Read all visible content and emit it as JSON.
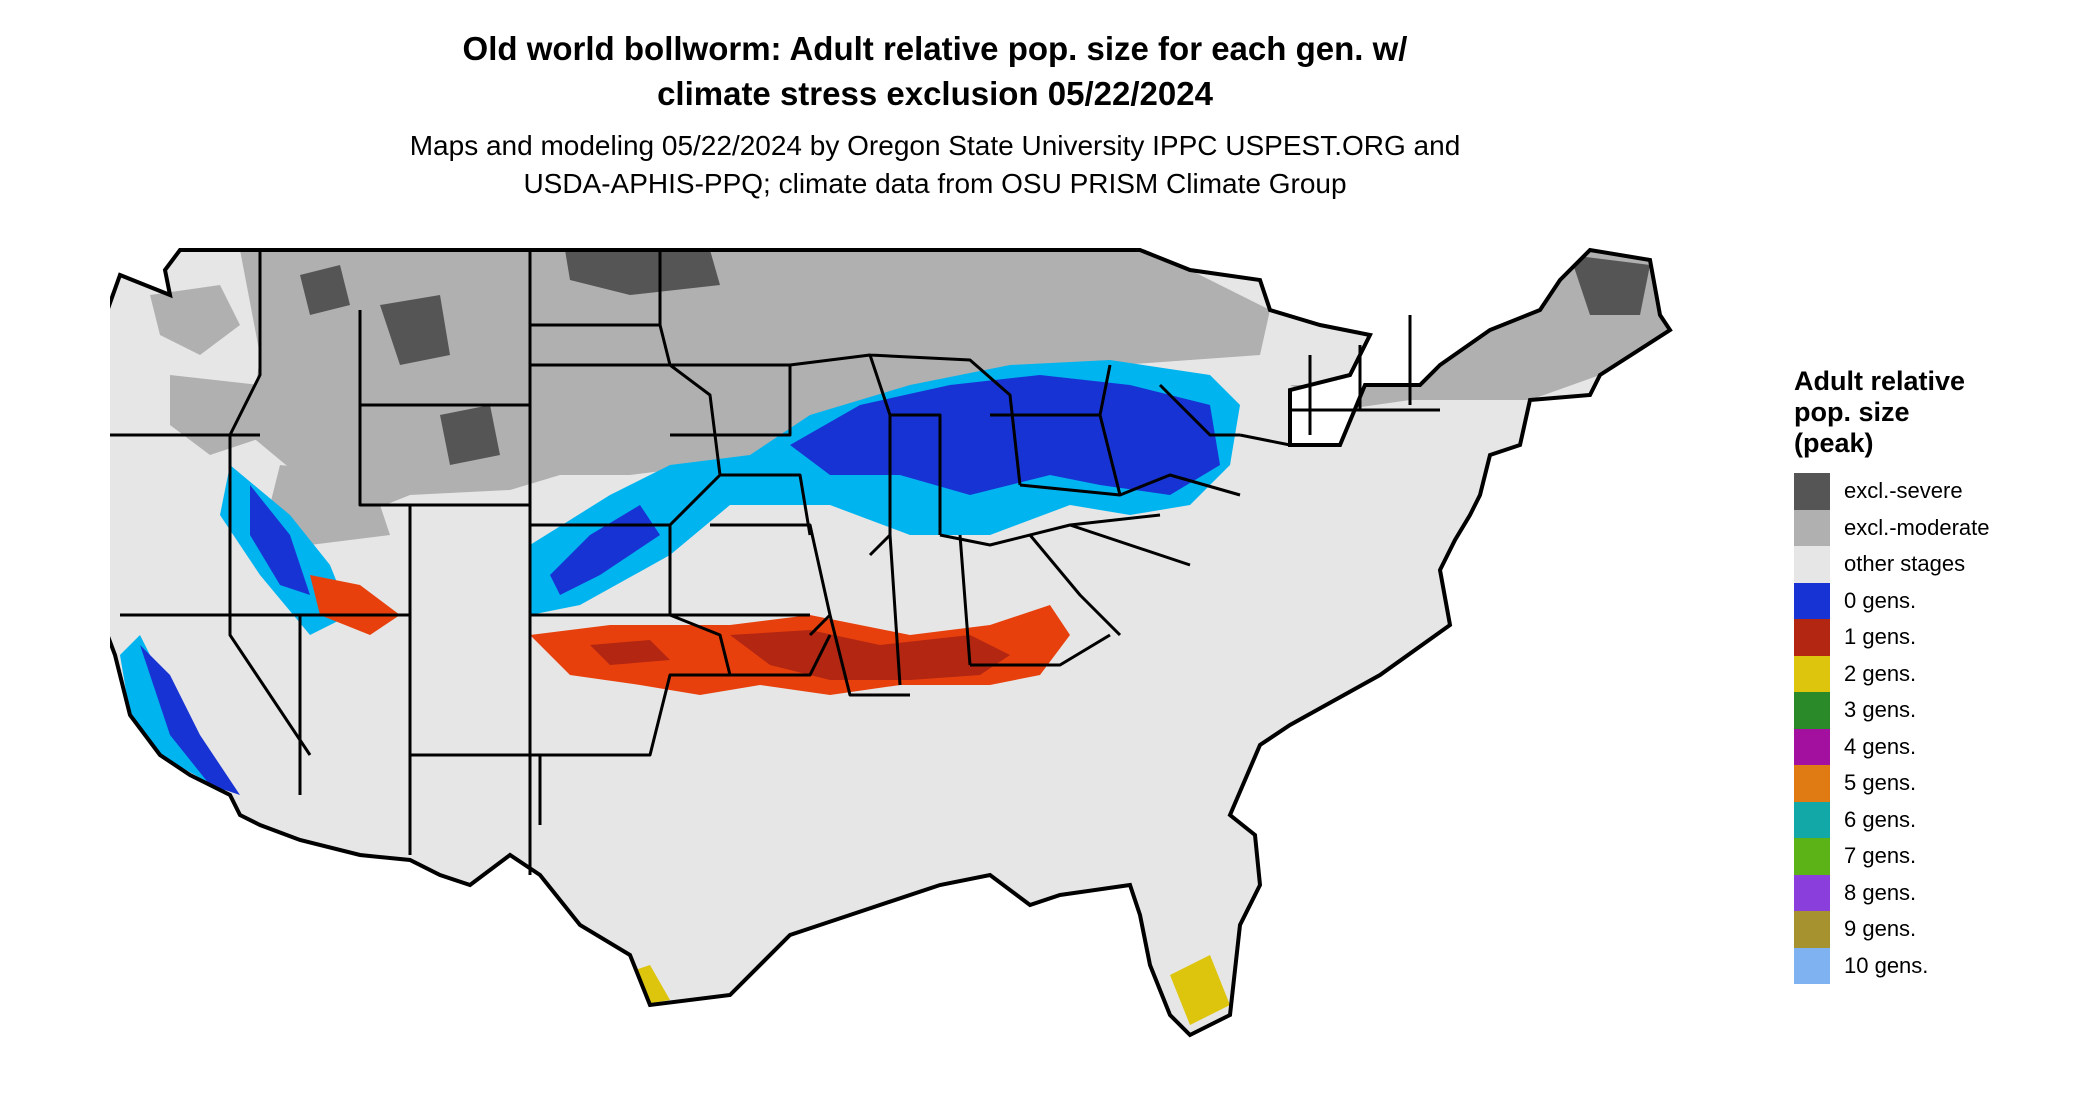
{
  "title_line1": "Old world bollworm: Adult relative pop. size for each gen. w/",
  "title_line2": "climate stress exclusion 05/22/2024",
  "subtitle_line1": "Maps and modeling 05/22/2024 by Oregon State University IPPC USPEST.ORG and",
  "subtitle_line2": "USDA-APHIS-PPQ; climate data from OSU PRISM Climate Group",
  "legend": {
    "title_line1": "Adult relative",
    "title_line2": "pop. size",
    "title_line3": "(peak)",
    "items": [
      {
        "label": "excl.-severe",
        "color": "#555555"
      },
      {
        "label": "excl.-moderate",
        "color": "#b0b0b0"
      },
      {
        "label": "other stages",
        "color": "#e6e6e6"
      },
      {
        "label": "0 gens.",
        "color": "#1733d4"
      },
      {
        "label": "1 gens.",
        "color": "#b22612"
      },
      {
        "label": "2 gens.",
        "color": "#dcc50c"
      },
      {
        "label": "3 gens.",
        "color": "#2a8a2a"
      },
      {
        "label": "4 gens.",
        "color": "#a3109f"
      },
      {
        "label": "5 gens.",
        "color": "#e07a12"
      },
      {
        "label": "6 gens.",
        "color": "#13a8a8"
      },
      {
        "label": "7 gens.",
        "color": "#5cb317"
      },
      {
        "label": "8 gens.",
        "color": "#8a3fdc"
      },
      {
        "label": "9 gens.",
        "color": "#a6922e"
      },
      {
        "label": "10 gens.",
        "color": "#7fb2f0"
      }
    ]
  },
  "map_colors": {
    "severe": "#555555",
    "moderate": "#b0b0b0",
    "other": "#e6e6e6",
    "zero_dark": "#1733d4",
    "zero_light": "#00b4f0",
    "one_dark": "#b22612",
    "one_light": "#e8400c",
    "two": "#dcc50c",
    "border": "#000000"
  }
}
